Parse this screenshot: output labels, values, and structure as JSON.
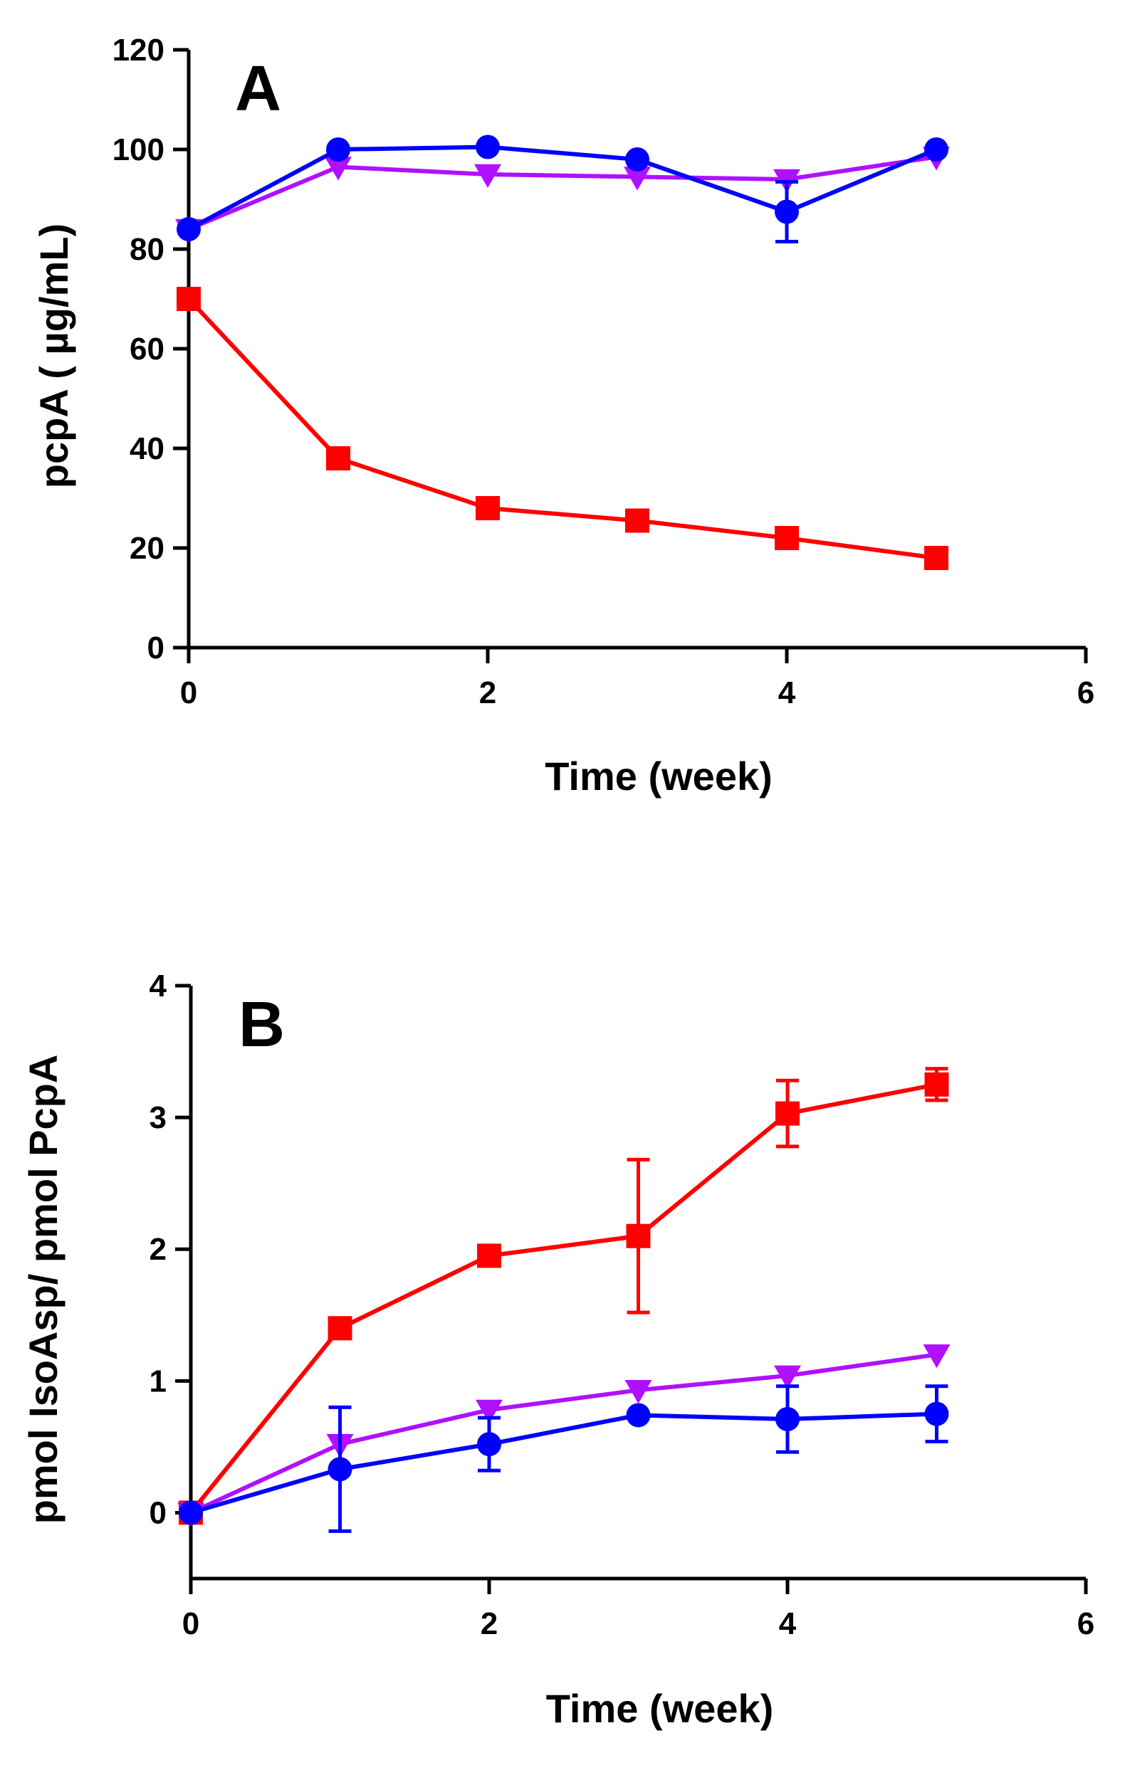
{
  "chart_data": [
    {
      "type": "line",
      "panel_label": "A",
      "xlabel": "Time (week)",
      "ylabel": "pcpA ( µg/mL)",
      "xlim": [
        0,
        6
      ],
      "ylim": [
        0,
        120
      ],
      "xticks": [
        0,
        2,
        4,
        6
      ],
      "yticks": [
        0,
        20,
        40,
        60,
        80,
        100,
        120
      ],
      "grid": false,
      "x": [
        0,
        1,
        2,
        3,
        4,
        5
      ],
      "series": [
        {
          "color": "#ff0000",
          "marker": "square",
          "values": [
            70,
            38,
            28,
            25.5,
            22,
            18
          ],
          "err": [
            0,
            0,
            0,
            0,
            0,
            0
          ]
        },
        {
          "color": "#b010ff",
          "marker": "triangle-down",
          "values": [
            84,
            96.5,
            95,
            94.5,
            94,
            98.5
          ],
          "err": [
            0,
            0,
            0,
            0,
            0,
            0
          ]
        },
        {
          "color": "#0000ff",
          "marker": "circle",
          "values": [
            84,
            100,
            100.5,
            98,
            87.5,
            100
          ],
          "err": [
            0,
            0,
            0,
            0,
            6,
            0
          ]
        }
      ]
    },
    {
      "type": "line",
      "panel_label": "B",
      "xlabel": "Time (week)",
      "ylabel": "pmol IsoAsp/ pmol PcpA",
      "xlim": [
        0,
        6
      ],
      "ylim": [
        -0.5,
        4
      ],
      "xticks": [
        0,
        2,
        4,
        6
      ],
      "yticks": [
        0,
        1,
        2,
        3,
        4
      ],
      "grid": false,
      "x": [
        0,
        1,
        2,
        3,
        4,
        5
      ],
      "series": [
        {
          "color": "#ff0000",
          "marker": "square",
          "values": [
            0,
            1.4,
            1.95,
            2.1,
            3.03,
            3.25
          ],
          "err": [
            0,
            0,
            0,
            0.58,
            0.25,
            0.12
          ]
        },
        {
          "color": "#b010ff",
          "marker": "triangle-down",
          "values": [
            0,
            0.52,
            0.78,
            0.93,
            1.04,
            1.2
          ],
          "err": [
            0,
            0,
            0,
            0,
            0,
            0
          ]
        },
        {
          "color": "#0000ff",
          "marker": "circle",
          "values": [
            0,
            0.33,
            0.52,
            0.74,
            0.71,
            0.75
          ],
          "err": [
            0,
            0.47,
            0.2,
            0,
            0.25,
            0.21
          ]
        }
      ]
    }
  ]
}
